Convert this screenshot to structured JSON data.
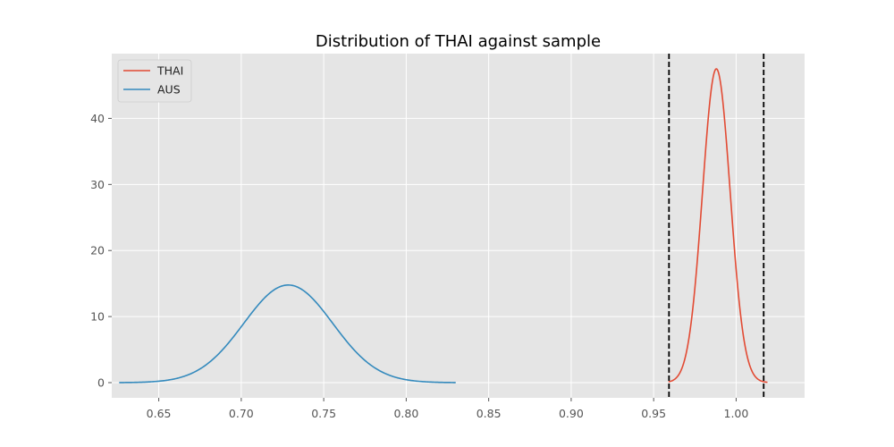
{
  "chart_data": {
    "type": "line",
    "title": "Distribution of THAI against sample",
    "xlabel": "",
    "ylabel": "",
    "xlim": [
      0.6215,
      1.0415
    ],
    "ylim": [
      -2.3,
      49.8
    ],
    "x_ticks": [
      0.65,
      0.7,
      0.75,
      0.8,
      0.85,
      0.9,
      0.95,
      1.0
    ],
    "x_tick_labels": [
      "0.65",
      "0.70",
      "0.75",
      "0.80",
      "0.85",
      "0.90",
      "0.95",
      "1.00"
    ],
    "y_ticks": [
      0,
      10,
      20,
      30,
      40
    ],
    "y_tick_labels": [
      "0",
      "10",
      "20",
      "30",
      "40"
    ],
    "grid": true,
    "legend_position": "upper-left",
    "series": [
      {
        "name": "THAI",
        "color": "#E24A33",
        "distribution": "normal",
        "mean": 0.988,
        "std": 0.0084,
        "x_range": [
          0.959,
          1.019
        ]
      },
      {
        "name": "AUS",
        "color": "#348ABD",
        "distribution": "normal",
        "mean": 0.7285,
        "std": 0.027,
        "x_range": [
          0.626,
          0.83
        ]
      }
    ],
    "vertical_lines": [
      {
        "x": 0.9593,
        "style": "dashed",
        "color": "#000000"
      },
      {
        "x": 1.0167,
        "style": "dashed",
        "color": "#000000"
      }
    ]
  }
}
